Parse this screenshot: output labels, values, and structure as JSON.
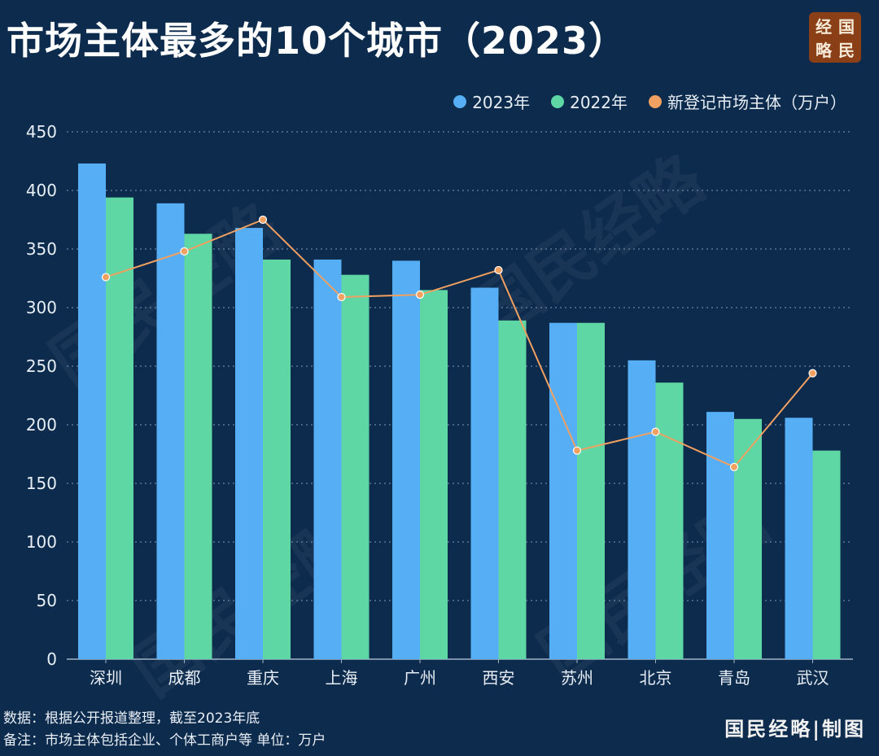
{
  "header": {
    "title": "市场主体最多的10个城市（2023）",
    "logo_chars": [
      "经",
      "国",
      "略",
      "民"
    ]
  },
  "legend": [
    {
      "label": "2023年",
      "color": "#56aef5"
    },
    {
      "label": "2022年",
      "color": "#5ed7a4"
    },
    {
      "label": "新登记市场主体（万户）",
      "color": "#f0a060"
    }
  ],
  "chart_data": {
    "type": "bar",
    "categories": [
      "深圳",
      "成都",
      "重庆",
      "上海",
      "广州",
      "西安",
      "苏州",
      "北京",
      "青岛",
      "武汉"
    ],
    "series": [
      {
        "name": "2023年",
        "type": "bar",
        "color": "#56aef5",
        "values": [
          423,
          389,
          368,
          341,
          340,
          317,
          287,
          255,
          211,
          206
        ]
      },
      {
        "name": "2022年",
        "type": "bar",
        "color": "#5ed7a4",
        "values": [
          394,
          363,
          341,
          328,
          315,
          289,
          287,
          236,
          205,
          178
        ]
      },
      {
        "name": "新登记市场主体（万户）",
        "type": "line",
        "color": "#f0a060",
        "values": [
          326,
          348,
          375,
          309,
          311,
          332,
          178,
          194,
          164,
          244
        ]
      }
    ],
    "ylim": [
      0,
      450
    ],
    "yticks": [
      0,
      50,
      100,
      150,
      200,
      250,
      300,
      350,
      400,
      450
    ],
    "grid": true,
    "legend_position": "top-right"
  },
  "footer": {
    "source": "数据：根据公开报道整理，截至2023年底",
    "note": "备注：市场主体包括企业、个体工商户等  单位：万户",
    "brand": "国民经略|制图"
  },
  "watermark_text": "国民经略"
}
